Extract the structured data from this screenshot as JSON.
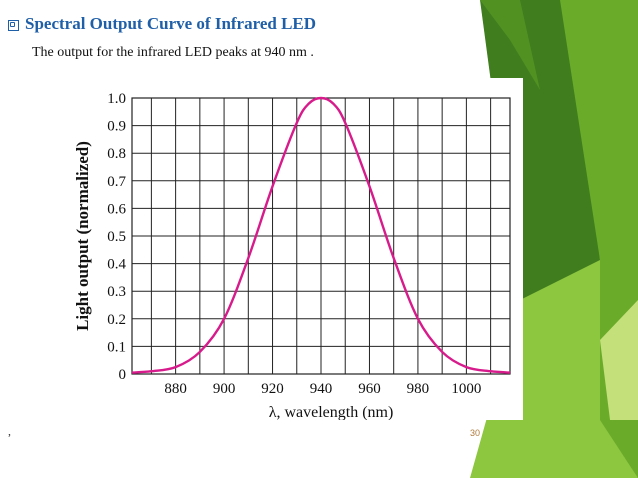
{
  "slide": {
    "title": "Spectral Output Curve of Infrared LED",
    "subtitle": "The output for the infrared LED peaks at 940 nm .",
    "comma": ",",
    "page_number": "30",
    "accent_colors": [
      "#8dc63f",
      "#4e8a1d",
      "#a7d045",
      "#c4e07a"
    ],
    "title_color": "#1f5fa8"
  },
  "chart_data": {
    "type": "line",
    "title": "",
    "xlabel": "λ, wavelength (nm)",
    "ylabel": "Light output (normalized)",
    "xlim": [
      862,
      1018
    ],
    "ylim": [
      0,
      1.0
    ],
    "grid": true,
    "line_color": "#d81b8c",
    "x_ticks": [
      880,
      900,
      920,
      940,
      960,
      980,
      1000
    ],
    "y_ticks": [
      0,
      0.1,
      0.2,
      0.3,
      0.4,
      0.5,
      0.6,
      0.7,
      0.8,
      0.9,
      1.0
    ],
    "y_tick_labels": [
      "0",
      "0.1",
      "0.2",
      "0.3",
      "0.4",
      "0.5",
      "0.6",
      "0.7",
      "0.8",
      "0.9",
      "1.0"
    ],
    "series": [
      {
        "x": [
          862,
          870,
          880,
          890,
          900,
          910,
          920,
          930,
          935,
          940,
          945,
          950,
          960,
          970,
          980,
          990,
          1000,
          1010,
          1018
        ],
        "y": [
          0.005,
          0.01,
          0.025,
          0.08,
          0.2,
          0.42,
          0.68,
          0.91,
          0.98,
          1.0,
          0.98,
          0.91,
          0.68,
          0.42,
          0.2,
          0.08,
          0.025,
          0.01,
          0.005
        ]
      }
    ]
  }
}
